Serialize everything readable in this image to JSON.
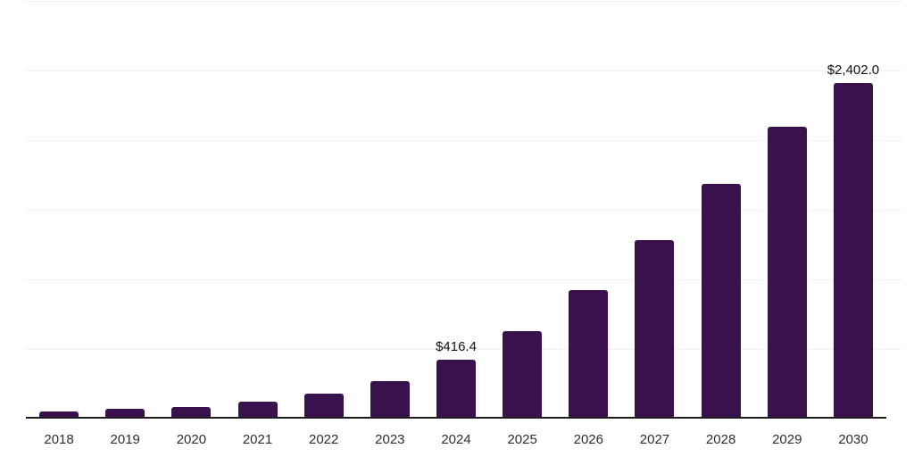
{
  "chart_data": {
    "type": "bar",
    "categories": [
      "2018",
      "2019",
      "2020",
      "2021",
      "2022",
      "2023",
      "2024",
      "2025",
      "2026",
      "2027",
      "2028",
      "2029",
      "2030"
    ],
    "values": [
      42,
      62,
      80,
      118,
      170,
      266,
      416.4,
      622,
      918,
      1277,
      1680,
      2090,
      2402.0
    ],
    "value_labels": {
      "2024": "$416.4",
      "2030": "$2,402.0"
    },
    "title": "",
    "xlabel": "",
    "ylabel": "",
    "ylim": [
      0,
      3000
    ],
    "gridline_step": 500,
    "grid": "horizontal",
    "legend": "none",
    "y_axis_tick_labels_visible": false,
    "bar_color": "#38114d",
    "axis_line_color": "#1c1c1c",
    "gridline_color": "#f2f2f3",
    "tick_label_color": "#2e2e2e",
    "value_label_color": "#111111",
    "background_color": "#ffffff"
  }
}
